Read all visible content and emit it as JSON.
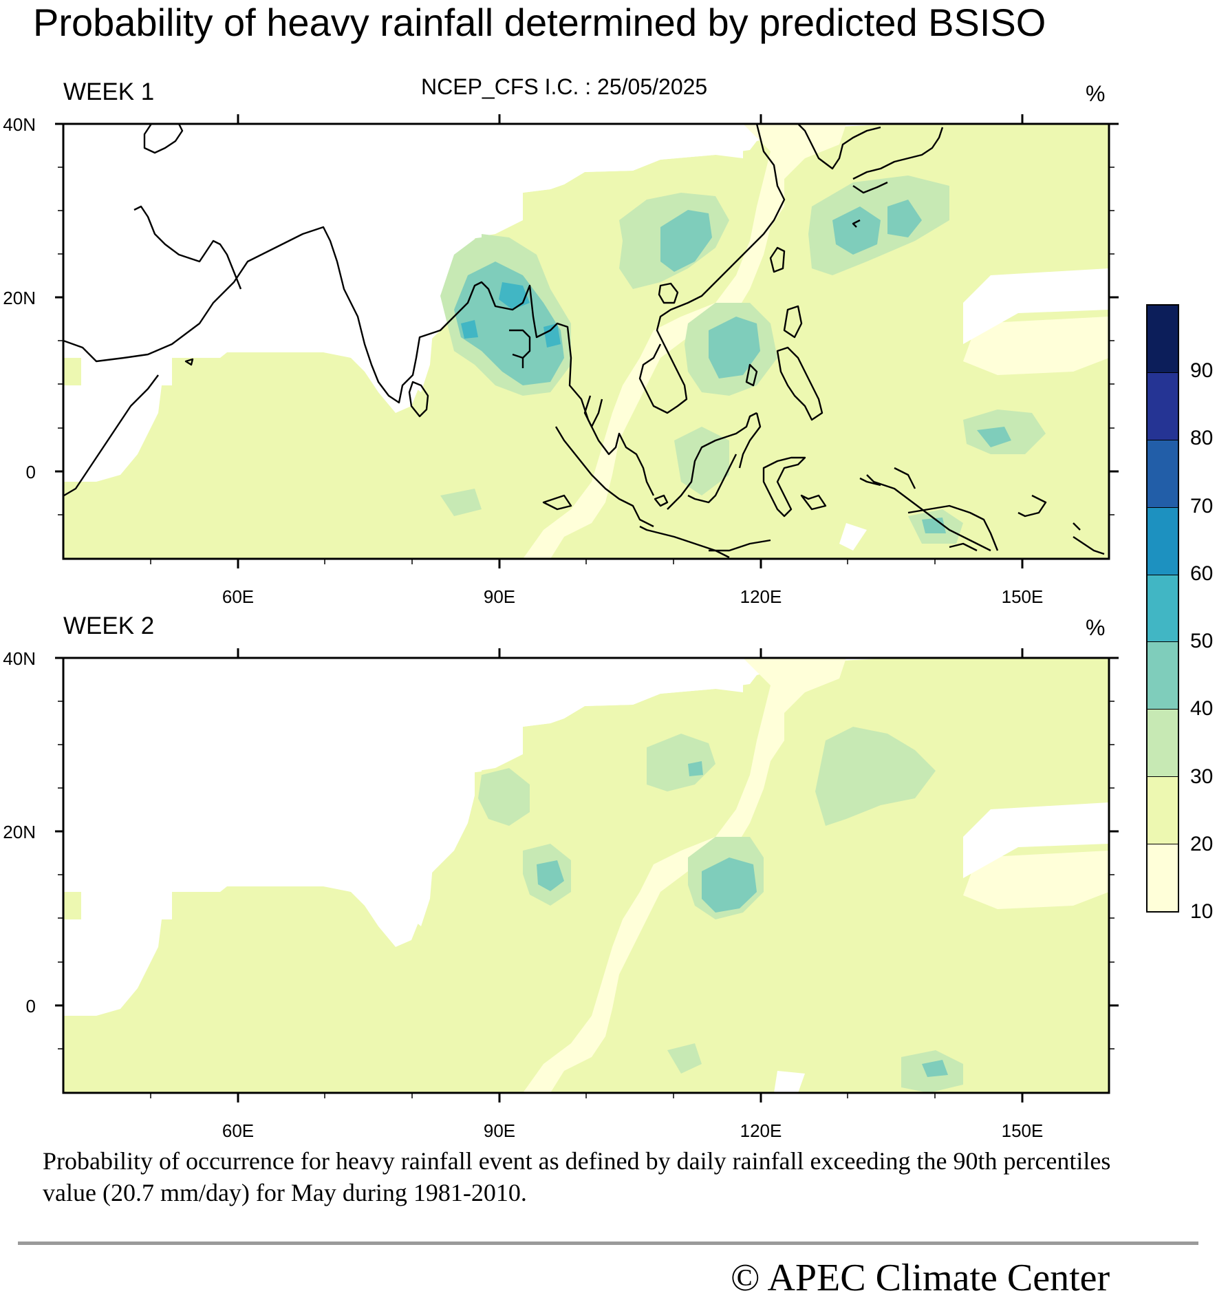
{
  "title": "Probability of heavy rainfall determined by predicted BSISO",
  "subtitle": "NCEP_CFS  I.C. : 25/05/2025",
  "unit": "%",
  "panels": [
    {
      "label": "WEEK 1"
    },
    {
      "label": "WEEK 2"
    }
  ],
  "axes": {
    "lat_ticks": [
      "40N",
      "20N",
      "0"
    ],
    "lon_ticks": [
      "60E",
      "90E",
      "120E",
      "150E"
    ]
  },
  "colorbar": {
    "labels": [
      "90",
      "80",
      "70",
      "60",
      "50",
      "40",
      "30",
      "20",
      "10"
    ],
    "colors": [
      "#0c1e5a",
      "#253494",
      "#225ea8",
      "#1d91c0",
      "#41b6c4",
      "#7fcdbb",
      "#c7e9b4",
      "#edf8b1",
      "#ffffd9"
    ]
  },
  "caption": "Probability of occurrence for heavy rainfall event as defined by daily rainfall exceeding the 90th percentiles value (20.7 mm/day) for May during 1981-2010.",
  "copyright": "©  APEC Climate Center"
}
